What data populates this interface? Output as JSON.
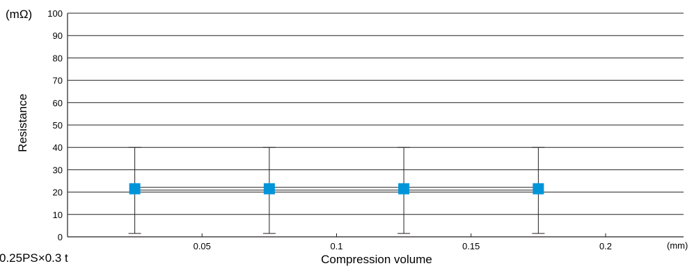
{
  "chart_data": {
    "type": "scatter",
    "title": "",
    "xlabel": "Compression volume",
    "ylabel": "Resistance",
    "y_unit": "(mΩ)",
    "x_unit": "(mm)",
    "note": "0.25PS×0.3 t",
    "xlim": [
      0,
      0.2
    ],
    "ylim": [
      0,
      100
    ],
    "x_ticks": [
      0.05,
      0.1,
      0.15,
      0.2
    ],
    "x_tick_labels": [
      "0.05",
      "0.1",
      "0.15",
      "0.2"
    ],
    "y_ticks": [
      0,
      10,
      20,
      30,
      40,
      50,
      60,
      70,
      80,
      90,
      100
    ],
    "y_tick_labels": [
      "0",
      "10",
      "20",
      "30",
      "40",
      "50",
      "60",
      "70",
      "80",
      "90",
      "100"
    ],
    "grid": {
      "horizontal": true,
      "vertical": false
    },
    "series": [
      {
        "x": [
          0.025,
          0.075,
          0.125,
          0.175
        ],
        "y": [
          21.5,
          21.5,
          21.5,
          21.5
        ],
        "y_min": [
          1.5,
          1.5,
          1.5,
          1.5
        ],
        "y_max": [
          40,
          40,
          40,
          40
        ],
        "color": "#0095d9",
        "marker": "square"
      }
    ]
  }
}
